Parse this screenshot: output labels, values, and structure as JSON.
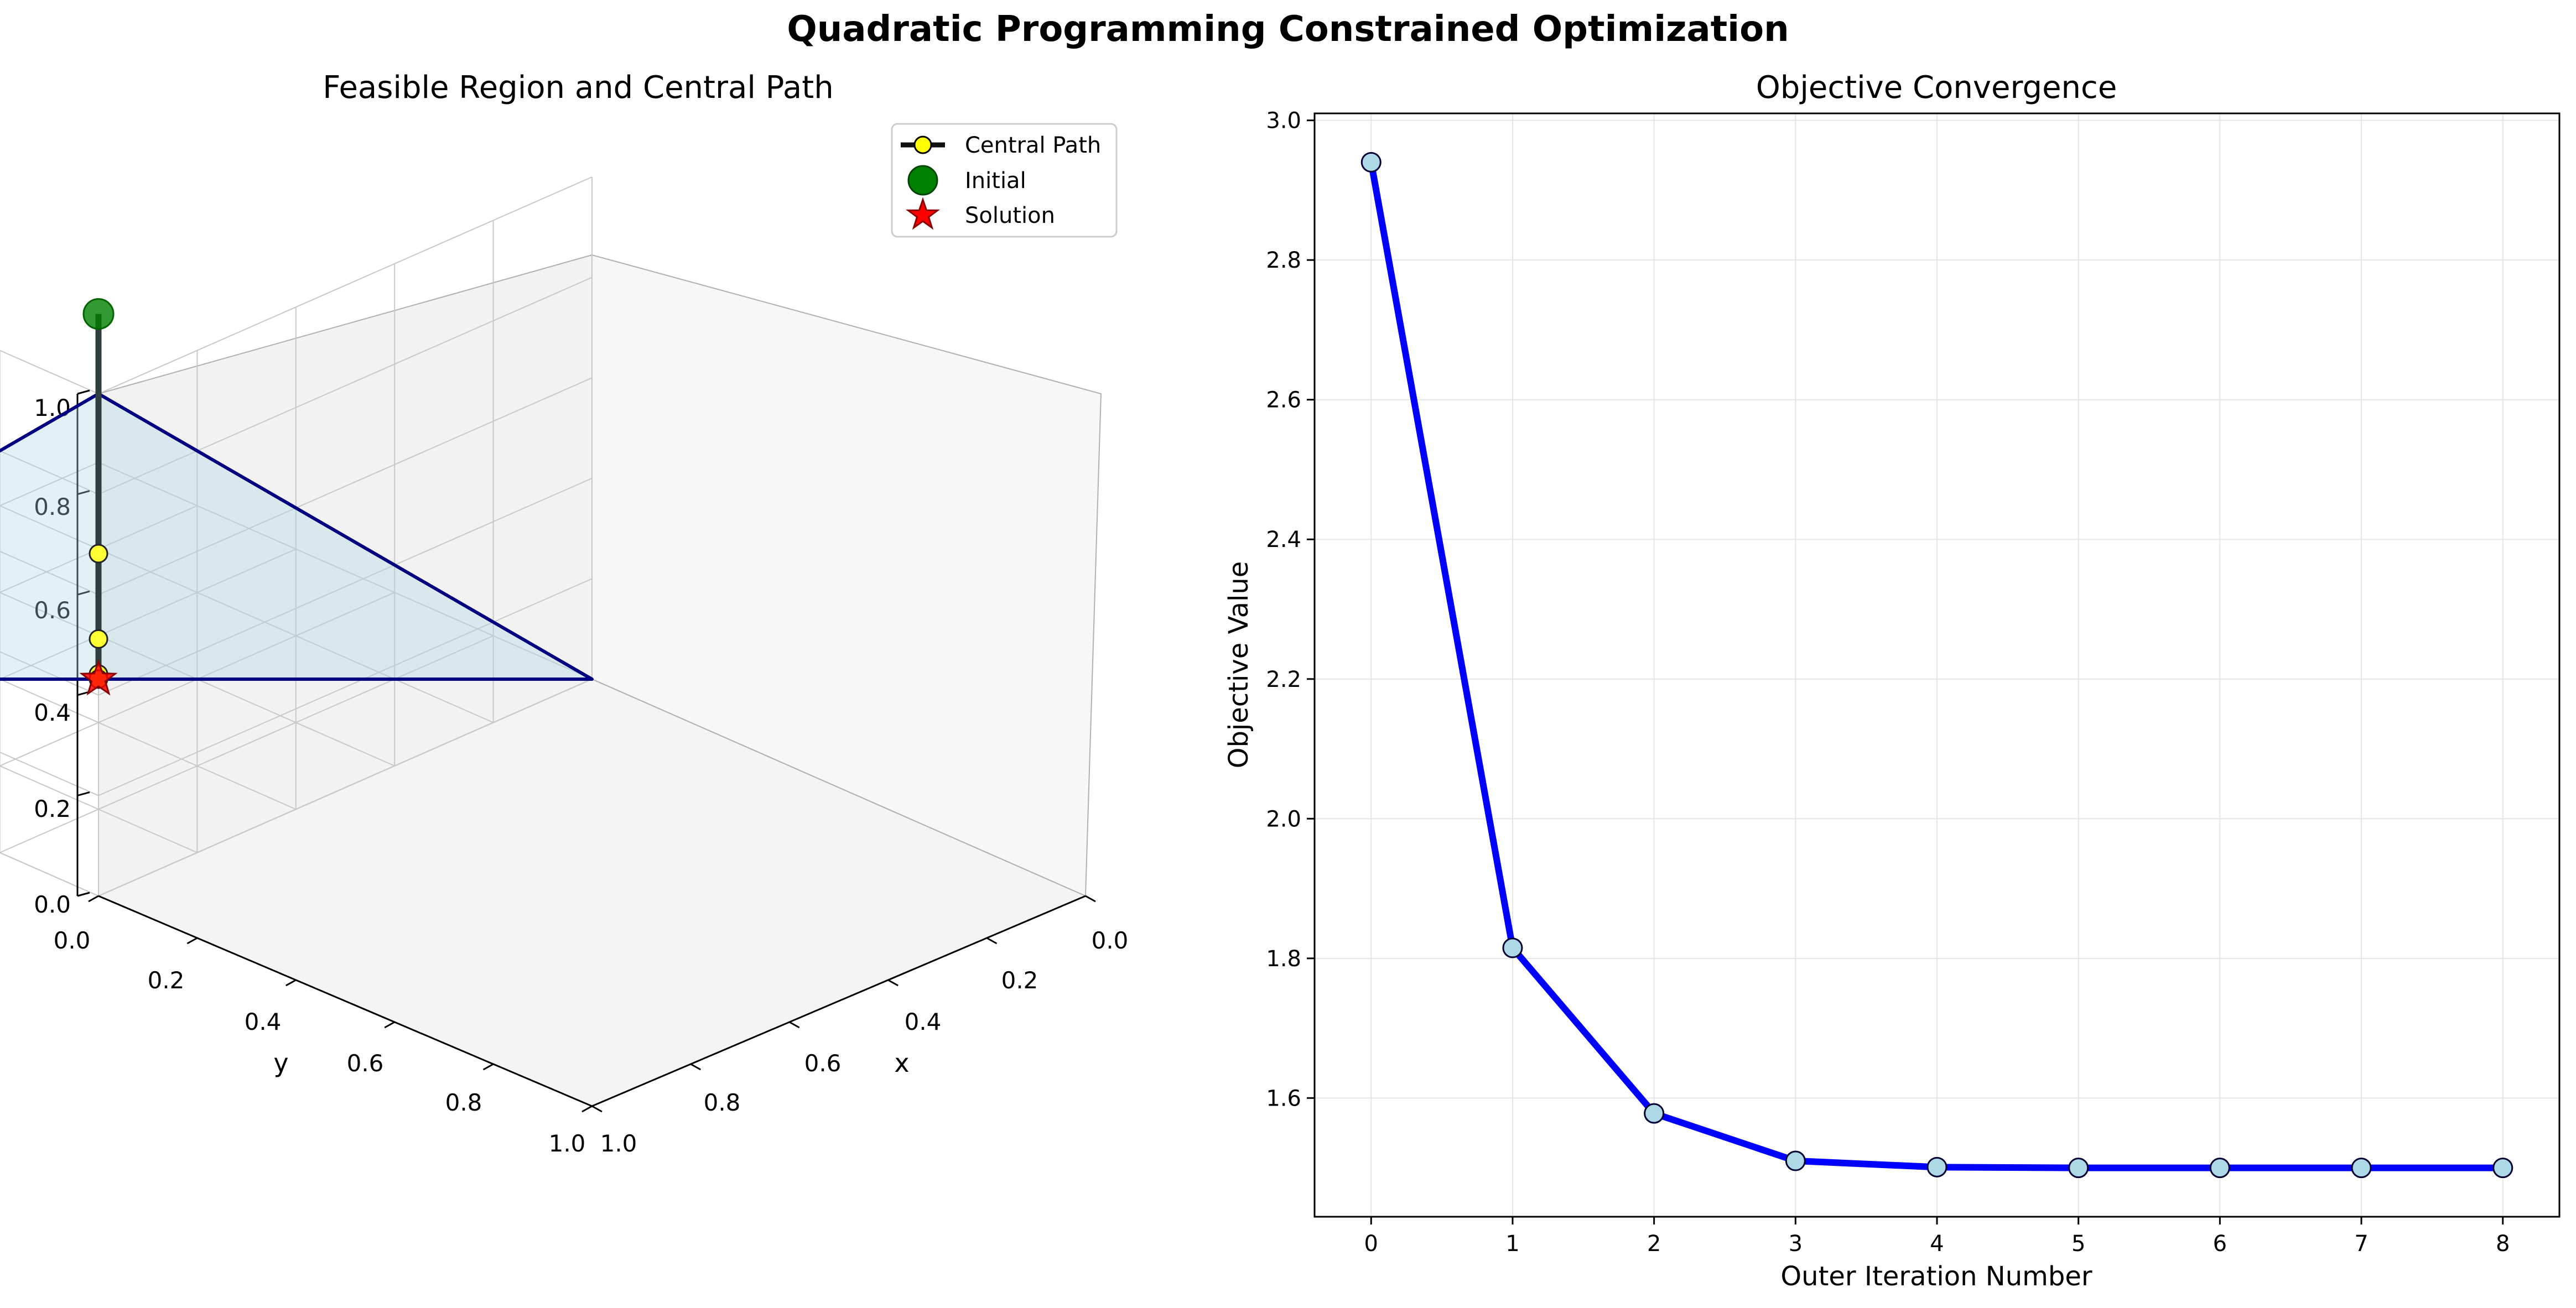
{
  "figure": {
    "title": "Quadratic Programming Constrained Optimization"
  },
  "chart_data": [
    {
      "type": "scatter",
      "title": "Feasible Region and Central Path",
      "projection": "3d",
      "xlabel": "x",
      "ylabel": "y",
      "zlabel": "",
      "xlim": [
        0,
        1
      ],
      "ylim": [
        0,
        1
      ],
      "zlim": [
        0,
        1
      ],
      "x_ticks": [
        "0.0",
        "0.2",
        "0.4",
        "0.6",
        "0.8",
        "1.0"
      ],
      "y_ticks": [
        "0.0",
        "0.2",
        "0.4",
        "0.6",
        "0.8",
        "1.0"
      ],
      "z_ticks": [
        "0.0",
        "0.2",
        "0.4",
        "0.6",
        "0.8",
        "1.0"
      ],
      "feasible_region": {
        "vertices": [
          [
            1,
            0,
            0
          ],
          [
            0,
            1,
            0
          ],
          [
            0,
            0,
            1
          ]
        ],
        "fill_color": "#add8e6",
        "edge_color": "#000080"
      },
      "series": [
        {
          "name": "Central Path",
          "kind": "line",
          "color": "#2f3f3f",
          "marker_color": "#ffff33",
          "points": [
            [
              0.3,
              0.3,
              0.9
            ],
            [
              0.5,
              0.5,
              0.25
            ],
            [
              0.5,
              0.5,
              0.08
            ],
            [
              0.5,
              0.5,
              0.01
            ],
            [
              0.5,
              0.5,
              0.0
            ]
          ]
        },
        {
          "name": "Initial",
          "kind": "point",
          "color": "#008000",
          "marker": "circle",
          "points": [
            [
              0.3,
              0.3,
              0.9
            ]
          ]
        },
        {
          "name": "Solution",
          "kind": "point",
          "color": "#ff0000",
          "marker": "star",
          "points": [
            [
              0.5,
              0.5,
              0.0
            ]
          ]
        }
      ],
      "legend": {
        "position": "top-right",
        "entries": [
          "Central Path",
          "Initial",
          "Solution"
        ]
      },
      "grid": true
    },
    {
      "type": "line",
      "title": "Objective Convergence",
      "xlabel": "Outer Iteration Number",
      "ylabel": "Objective Value",
      "x": [
        0,
        1,
        2,
        3,
        4,
        5,
        6,
        7,
        8
      ],
      "series": [
        {
          "values": [
            2.94,
            1.815,
            1.578,
            1.51,
            1.501,
            1.5,
            1.5,
            1.5,
            1.5
          ],
          "color": "#0000ff",
          "marker_color": "#add8e6"
        }
      ],
      "xlim": [
        -0.4,
        8.4
      ],
      "ylim": [
        1.43,
        3.01
      ],
      "x_ticks": [
        "0",
        "1",
        "2",
        "3",
        "4",
        "5",
        "6",
        "7",
        "8"
      ],
      "y_ticks": [
        "1.6",
        "1.8",
        "2.0",
        "2.2",
        "2.4",
        "2.6",
        "2.8",
        "3.0"
      ],
      "y_tick_values": [
        1.6,
        1.8,
        2.0,
        2.2,
        2.4,
        2.6,
        2.8,
        3.0
      ],
      "grid": true
    }
  ]
}
